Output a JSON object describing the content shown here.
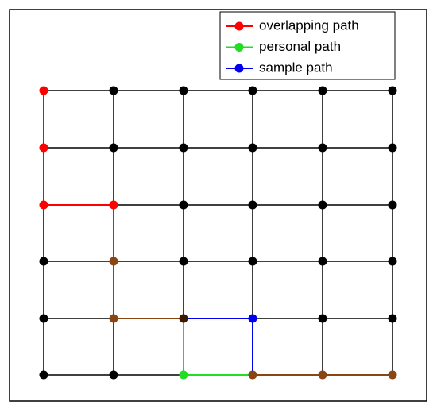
{
  "legend": {
    "items": [
      {
        "label": "overlapping path",
        "color": "#ff0000"
      },
      {
        "label": "personal path",
        "color": "#22dd22"
      },
      {
        "label": "sample path",
        "color": "#0000ee"
      }
    ]
  }
}
